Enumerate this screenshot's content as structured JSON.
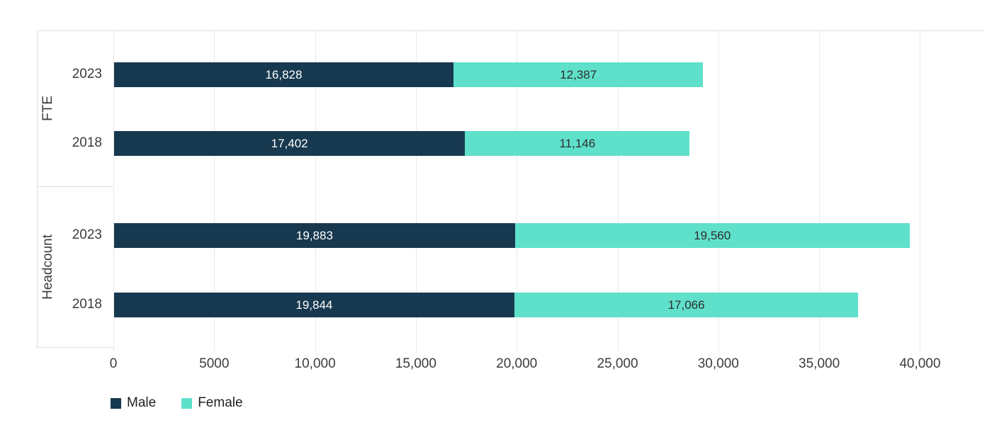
{
  "chart_data": {
    "type": "bar",
    "orientation": "horizontal",
    "stacked": true,
    "grid": true,
    "groups": [
      {
        "label": "FTE"
      },
      {
        "label": "Headcount"
      }
    ],
    "rows": [
      {
        "group": "FTE",
        "year": "2023",
        "male": 16828,
        "female": 12387,
        "male_label": "16,828",
        "female_label": "12,387"
      },
      {
        "group": "FTE",
        "year": "2018",
        "male": 17402,
        "female": 11146,
        "male_label": "17,402",
        "female_label": "11,146"
      },
      {
        "group": "Headcount",
        "year": "2023",
        "male": 19883,
        "female": 19560,
        "male_label": "19,883",
        "female_label": "19,560"
      },
      {
        "group": "Headcount",
        "year": "2018",
        "male": 19844,
        "female": 17066,
        "male_label": "19,844",
        "female_label": "17,066"
      }
    ],
    "series": [
      {
        "name": "Male",
        "color": "#17394F",
        "label_color": "#ffffff",
        "values": [
          16828,
          17402,
          19883,
          19844
        ]
      },
      {
        "name": "Female",
        "color": "#5FE0CA",
        "label_color": "#2e2e2e",
        "values": [
          12387,
          11146,
          19560,
          17066
        ]
      }
    ],
    "x_axis": {
      "tick_values": [
        0,
        5000,
        10000,
        15000,
        20000,
        25000,
        30000,
        35000,
        40000
      ],
      "tick_labels": [
        "0",
        "5000",
        "10,000",
        "15,000",
        "20,000",
        "25,000",
        "30,000",
        "35,000",
        "40,000"
      ],
      "min": 0,
      "max": 43200
    },
    "legend": [
      {
        "label": "Male",
        "color": "#17394F"
      },
      {
        "label": "Female",
        "color": "#5FE0CA"
      }
    ],
    "title": "",
    "xlabel": "",
    "ylabel": ""
  },
  "colors": {
    "background": "#ffffff",
    "gridline": "#e9e9e9",
    "axis_line": "#dedede",
    "axis_text": "#3c3c3c"
  }
}
